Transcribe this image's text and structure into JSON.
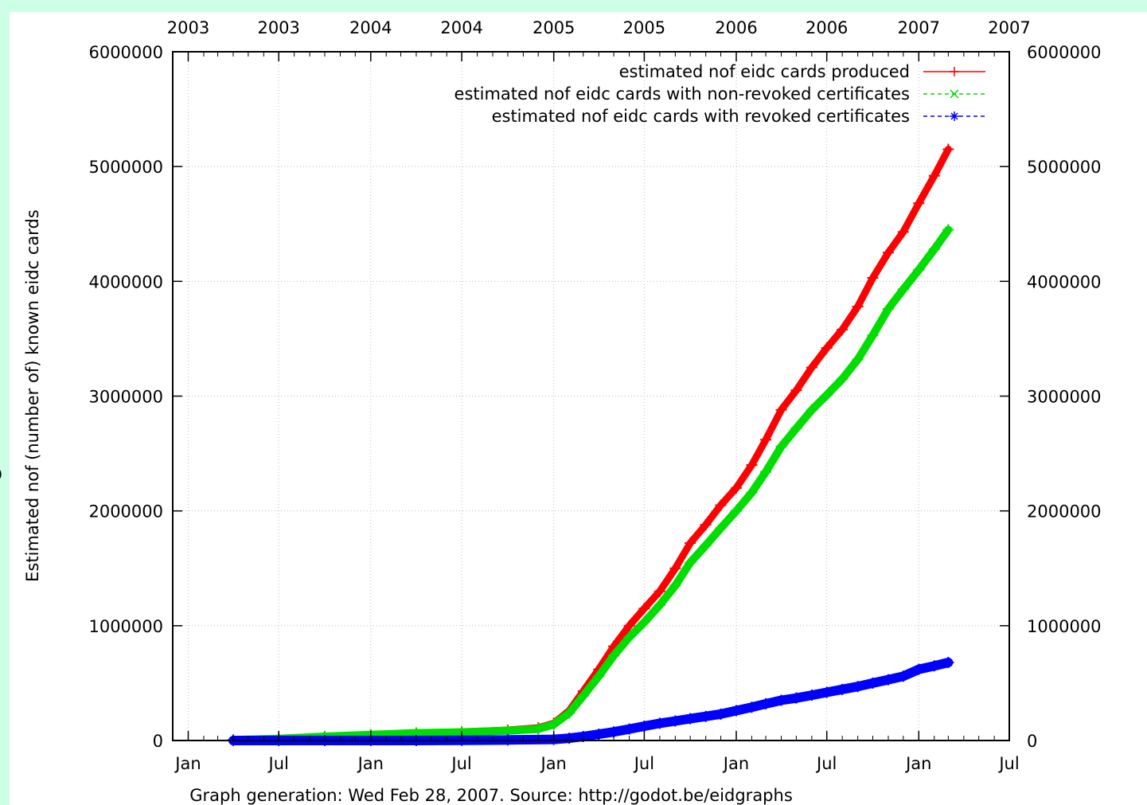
{
  "page": {
    "stray_glyph": "o"
  },
  "chart_data": {
    "type": "line",
    "title": "",
    "xlabel": "",
    "ylabel": "Estimated nof (number of) known eidc cards",
    "footer": "Graph generation: Wed Feb 28, 2007. Source: http://godot.be/eidgraphs",
    "x_range": [
      "2002-12-01",
      "2007-07-01"
    ],
    "ylim": [
      0,
      6000000
    ],
    "grid": true,
    "legend_position": "top-right",
    "x_ticks_bottom": [
      {
        "date": "2003-01-01",
        "label": "Jan"
      },
      {
        "date": "2003-07-01",
        "label": "Jul"
      },
      {
        "date": "2004-01-01",
        "label": "Jan"
      },
      {
        "date": "2004-07-01",
        "label": "Jul"
      },
      {
        "date": "2005-01-01",
        "label": "Jan"
      },
      {
        "date": "2005-07-01",
        "label": "Jul"
      },
      {
        "date": "2006-01-01",
        "label": "Jan"
      },
      {
        "date": "2006-07-01",
        "label": "Jul"
      },
      {
        "date": "2007-01-01",
        "label": "Jan"
      },
      {
        "date": "2007-07-01",
        "label": "Jul"
      }
    ],
    "x_ticks_top": [
      {
        "date": "2003-01-01",
        "label": "2003"
      },
      {
        "date": "2003-07-01",
        "label": "2003"
      },
      {
        "date": "2004-01-01",
        "label": "2004"
      },
      {
        "date": "2004-07-01",
        "label": "2004"
      },
      {
        "date": "2005-01-01",
        "label": "2005"
      },
      {
        "date": "2005-07-01",
        "label": "2005"
      },
      {
        "date": "2006-01-01",
        "label": "2006"
      },
      {
        "date": "2006-07-01",
        "label": "2006"
      },
      {
        "date": "2007-01-01",
        "label": "2007"
      },
      {
        "date": "2007-07-01",
        "label": "2007"
      }
    ],
    "y_ticks": [
      0,
      1000000,
      2000000,
      3000000,
      4000000,
      5000000,
      6000000
    ],
    "series": [
      {
        "name": "estimated nof eidc cards produced",
        "color": "#ff0000",
        "marker": "plus",
        "line_style": "solid",
        "points": [
          [
            "2003-04-01",
            5000
          ],
          [
            "2003-07-01",
            15000
          ],
          [
            "2003-10-01",
            35000
          ],
          [
            "2004-01-01",
            50000
          ],
          [
            "2004-04-01",
            65000
          ],
          [
            "2004-07-01",
            75000
          ],
          [
            "2004-10-01",
            90000
          ],
          [
            "2004-12-01",
            110000
          ],
          [
            "2005-01-01",
            150000
          ],
          [
            "2005-02-01",
            260000
          ],
          [
            "2005-03-01",
            430000
          ],
          [
            "2005-04-01",
            620000
          ],
          [
            "2005-05-01",
            820000
          ],
          [
            "2005-06-01",
            1000000
          ],
          [
            "2005-07-01",
            1150000
          ],
          [
            "2005-08-01",
            1300000
          ],
          [
            "2005-09-01",
            1500000
          ],
          [
            "2005-10-01",
            1720000
          ],
          [
            "2005-11-01",
            1880000
          ],
          [
            "2005-12-01",
            2050000
          ],
          [
            "2006-01-01",
            2200000
          ],
          [
            "2006-02-01",
            2400000
          ],
          [
            "2006-03-01",
            2620000
          ],
          [
            "2006-04-01",
            2880000
          ],
          [
            "2006-05-01",
            3050000
          ],
          [
            "2006-06-01",
            3250000
          ],
          [
            "2006-07-01",
            3420000
          ],
          [
            "2006-08-01",
            3580000
          ],
          [
            "2006-09-01",
            3780000
          ],
          [
            "2006-10-01",
            4030000
          ],
          [
            "2006-11-01",
            4250000
          ],
          [
            "2006-12-01",
            4430000
          ],
          [
            "2007-01-01",
            4680000
          ],
          [
            "2007-02-01",
            4920000
          ],
          [
            "2007-03-01",
            5150000
          ]
        ]
      },
      {
        "name": "estimated nof eidc cards with non-revoked certificates",
        "color": "#00dd00",
        "marker": "cross",
        "line_style": "dashed",
        "points": [
          [
            "2003-04-01",
            5000
          ],
          [
            "2003-07-01",
            15000
          ],
          [
            "2003-10-01",
            35000
          ],
          [
            "2004-01-01",
            50000
          ],
          [
            "2004-04-01",
            65000
          ],
          [
            "2004-07-01",
            72000
          ],
          [
            "2004-10-01",
            85000
          ],
          [
            "2004-12-01",
            100000
          ],
          [
            "2005-01-01",
            140000
          ],
          [
            "2005-02-01",
            240000
          ],
          [
            "2005-03-01",
            390000
          ],
          [
            "2005-04-01",
            560000
          ],
          [
            "2005-05-01",
            740000
          ],
          [
            "2005-06-01",
            900000
          ],
          [
            "2005-07-01",
            1030000
          ],
          [
            "2005-08-01",
            1180000
          ],
          [
            "2005-09-01",
            1350000
          ],
          [
            "2005-10-01",
            1550000
          ],
          [
            "2005-11-01",
            1700000
          ],
          [
            "2005-12-01",
            1850000
          ],
          [
            "2006-01-01",
            2000000
          ],
          [
            "2006-02-01",
            2160000
          ],
          [
            "2006-03-01",
            2340000
          ],
          [
            "2006-04-01",
            2560000
          ],
          [
            "2006-05-01",
            2720000
          ],
          [
            "2006-06-01",
            2880000
          ],
          [
            "2006-07-01",
            3010000
          ],
          [
            "2006-08-01",
            3150000
          ],
          [
            "2006-09-01",
            3320000
          ],
          [
            "2006-10-01",
            3530000
          ],
          [
            "2006-11-01",
            3760000
          ],
          [
            "2006-12-01",
            3930000
          ],
          [
            "2007-01-01",
            4100000
          ],
          [
            "2007-02-01",
            4280000
          ],
          [
            "2007-03-01",
            4450000
          ]
        ]
      },
      {
        "name": "estimated nof eidc cards with revoked certificates",
        "color": "#0000ff",
        "marker": "star",
        "line_style": "dashed",
        "points": [
          [
            "2003-04-01",
            0
          ],
          [
            "2003-07-01",
            0
          ],
          [
            "2003-10-01",
            0
          ],
          [
            "2004-01-01",
            0
          ],
          [
            "2004-04-01",
            0
          ],
          [
            "2004-07-01",
            2000
          ],
          [
            "2004-10-01",
            5000
          ],
          [
            "2005-01-01",
            10000
          ],
          [
            "2005-02-01",
            20000
          ],
          [
            "2005-03-01",
            35000
          ],
          [
            "2005-04-01",
            55000
          ],
          [
            "2005-05-01",
            75000
          ],
          [
            "2005-06-01",
            100000
          ],
          [
            "2005-07-01",
            125000
          ],
          [
            "2005-08-01",
            150000
          ],
          [
            "2005-09-01",
            170000
          ],
          [
            "2005-10-01",
            190000
          ],
          [
            "2005-11-01",
            210000
          ],
          [
            "2005-12-01",
            230000
          ],
          [
            "2006-01-01",
            260000
          ],
          [
            "2006-02-01",
            290000
          ],
          [
            "2006-03-01",
            320000
          ],
          [
            "2006-04-01",
            350000
          ],
          [
            "2006-05-01",
            370000
          ],
          [
            "2006-06-01",
            395000
          ],
          [
            "2006-07-01",
            420000
          ],
          [
            "2006-08-01",
            445000
          ],
          [
            "2006-09-01",
            470000
          ],
          [
            "2006-10-01",
            500000
          ],
          [
            "2006-11-01",
            530000
          ],
          [
            "2006-12-01",
            560000
          ],
          [
            "2007-01-01",
            620000
          ],
          [
            "2007-02-01",
            650000
          ],
          [
            "2007-03-01",
            680000
          ]
        ]
      }
    ]
  }
}
